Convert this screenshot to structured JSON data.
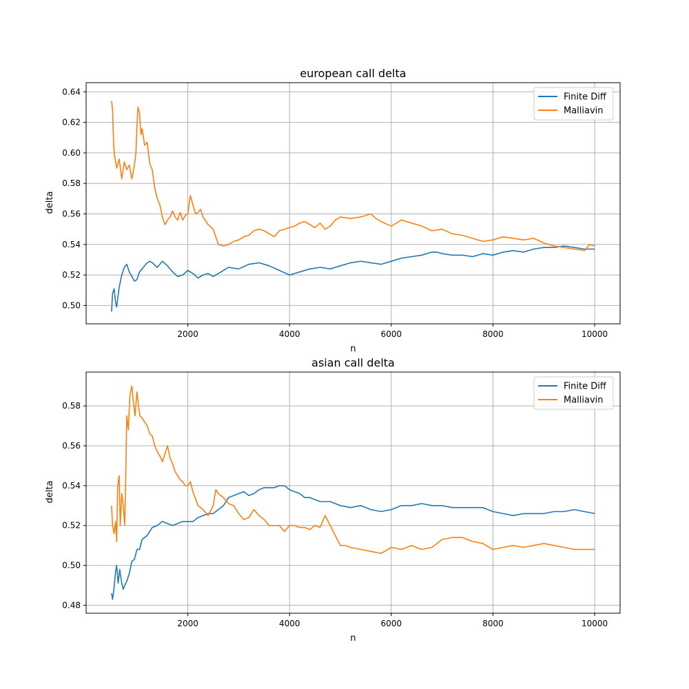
{
  "chart_data": [
    {
      "type": "line",
      "title": "european call delta",
      "xlabel": "n",
      "ylabel": "delta",
      "xlim": [
        0,
        10500
      ],
      "ylim": [
        0.488,
        0.646
      ],
      "xticks": [
        2000,
        4000,
        6000,
        8000,
        10000
      ],
      "yticks": [
        0.5,
        0.52,
        0.54,
        0.56,
        0.58,
        0.6,
        0.62,
        0.64
      ],
      "xtick_labels": [
        "2000",
        "4000",
        "6000",
        "8000",
        "10000"
      ],
      "ytick_labels": [
        "0.50",
        "0.52",
        "0.54",
        "0.56",
        "0.58",
        "0.60",
        "0.62",
        "0.64"
      ],
      "grid": true,
      "legend_position": "top-right",
      "series": [
        {
          "name": "Finite Diff",
          "color": "#1f77b4",
          "x": [
            500,
            520,
            550,
            580,
            600,
            650,
            700,
            750,
            800,
            850,
            900,
            950,
            1000,
            1050,
            1100,
            1150,
            1200,
            1250,
            1300,
            1400,
            1500,
            1600,
            1700,
            1800,
            1900,
            2000,
            2100,
            2200,
            2300,
            2400,
            2500,
            2600,
            2700,
            2800,
            3000,
            3200,
            3400,
            3600,
            3800,
            4000,
            4200,
            4400,
            4600,
            4800,
            5000,
            5200,
            5400,
            5600,
            5800,
            6000,
            6200,
            6400,
            6600,
            6800,
            6900,
            7000,
            7200,
            7400,
            7600,
            7800,
            8000,
            8200,
            8400,
            8600,
            8800,
            9000,
            9200,
            9400,
            9600,
            9800,
            10000
          ],
          "y": [
            0.496,
            0.508,
            0.511,
            0.502,
            0.499,
            0.512,
            0.52,
            0.525,
            0.527,
            0.522,
            0.519,
            0.516,
            0.517,
            0.522,
            0.524,
            0.526,
            0.528,
            0.529,
            0.528,
            0.525,
            0.529,
            0.526,
            0.522,
            0.519,
            0.52,
            0.523,
            0.521,
            0.518,
            0.52,
            0.521,
            0.519,
            0.521,
            0.523,
            0.525,
            0.524,
            0.527,
            0.528,
            0.526,
            0.523,
            0.52,
            0.522,
            0.524,
            0.525,
            0.524,
            0.526,
            0.528,
            0.529,
            0.528,
            0.527,
            0.529,
            0.531,
            0.532,
            0.533,
            0.535,
            0.535,
            0.534,
            0.533,
            0.533,
            0.532,
            0.534,
            0.533,
            0.535,
            0.536,
            0.535,
            0.537,
            0.538,
            0.538,
            0.539,
            0.538,
            0.537,
            0.537
          ]
        },
        {
          "name": "Malliavin",
          "color": "#ff7f0e",
          "x": [
            500,
            520,
            540,
            560,
            600,
            650,
            700,
            750,
            800,
            850,
            900,
            950,
            980,
            1000,
            1020,
            1050,
            1080,
            1100,
            1150,
            1200,
            1250,
            1300,
            1350,
            1400,
            1450,
            1500,
            1550,
            1600,
            1650,
            1700,
            1750,
            1800,
            1850,
            1900,
            1950,
            2000,
            2050,
            2100,
            2150,
            2200,
            2250,
            2300,
            2400,
            2500,
            2600,
            2700,
            2800,
            2900,
            3000,
            3100,
            3200,
            3300,
            3400,
            3500,
            3600,
            3700,
            3800,
            3900,
            4000,
            4100,
            4200,
            4300,
            4400,
            4500,
            4600,
            4700,
            4800,
            4900,
            5000,
            5200,
            5400,
            5600,
            5700,
            5800,
            6000,
            6200,
            6400,
            6600,
            6800,
            7000,
            7200,
            7400,
            7600,
            7800,
            8000,
            8200,
            8400,
            8600,
            8800,
            9000,
            9200,
            9400,
            9600,
            9800,
            9900,
            10000
          ],
          "y": [
            0.634,
            0.628,
            0.606,
            0.598,
            0.59,
            0.596,
            0.583,
            0.594,
            0.589,
            0.592,
            0.583,
            0.592,
            0.6,
            0.618,
            0.63,
            0.626,
            0.612,
            0.616,
            0.605,
            0.607,
            0.593,
            0.589,
            0.577,
            0.57,
            0.566,
            0.558,
            0.553,
            0.556,
            0.558,
            0.562,
            0.558,
            0.556,
            0.561,
            0.556,
            0.559,
            0.56,
            0.572,
            0.566,
            0.56,
            0.561,
            0.563,
            0.558,
            0.553,
            0.55,
            0.54,
            0.539,
            0.54,
            0.542,
            0.543,
            0.545,
            0.546,
            0.549,
            0.55,
            0.549,
            0.547,
            0.545,
            0.549,
            0.55,
            0.551,
            0.552,
            0.554,
            0.555,
            0.553,
            0.551,
            0.554,
            0.55,
            0.552,
            0.556,
            0.558,
            0.557,
            0.558,
            0.56,
            0.557,
            0.555,
            0.552,
            0.556,
            0.554,
            0.552,
            0.549,
            0.55,
            0.547,
            0.546,
            0.544,
            0.542,
            0.543,
            0.545,
            0.544,
            0.543,
            0.544,
            0.541,
            0.539,
            0.538,
            0.537,
            0.536,
            0.54,
            0.539
          ]
        }
      ]
    },
    {
      "type": "line",
      "title": "asian call delta",
      "xlabel": "n",
      "ylabel": "delta",
      "xlim": [
        0,
        10500
      ],
      "ylim": [
        0.476,
        0.597
      ],
      "xticks": [
        2000,
        4000,
        6000,
        8000,
        10000
      ],
      "yticks": [
        0.48,
        0.5,
        0.52,
        0.54,
        0.56,
        0.58
      ],
      "xtick_labels": [
        "2000",
        "4000",
        "6000",
        "8000",
        "10000"
      ],
      "ytick_labels": [
        "0.48",
        "0.50",
        "0.52",
        "0.54",
        "0.56",
        "0.58"
      ],
      "grid": true,
      "legend_position": "top-right",
      "series": [
        {
          "name": "Finite Diff",
          "color": "#1f77b4",
          "x": [
            500,
            520,
            550,
            580,
            600,
            630,
            660,
            700,
            730,
            760,
            800,
            850,
            900,
            950,
            1000,
            1050,
            1100,
            1150,
            1200,
            1300,
            1400,
            1500,
            1600,
            1700,
            1800,
            1900,
            2000,
            2100,
            2200,
            2300,
            2400,
            2500,
            2600,
            2700,
            2800,
            2900,
            3000,
            3100,
            3200,
            3300,
            3400,
            3500,
            3600,
            3700,
            3800,
            3900,
            4000,
            4100,
            4200,
            4300,
            4400,
            4600,
            4800,
            5000,
            5200,
            5400,
            5600,
            5800,
            6000,
            6200,
            6400,
            6600,
            6800,
            7000,
            7200,
            7400,
            7600,
            7800,
            8000,
            8200,
            8400,
            8600,
            8800,
            9000,
            9200,
            9400,
            9600,
            9800,
            10000
          ],
          "y": [
            0.486,
            0.483,
            0.489,
            0.497,
            0.5,
            0.491,
            0.498,
            0.491,
            0.488,
            0.49,
            0.492,
            0.496,
            0.502,
            0.503,
            0.508,
            0.508,
            0.513,
            0.514,
            0.515,
            0.519,
            0.52,
            0.522,
            0.521,
            0.52,
            0.521,
            0.522,
            0.522,
            0.522,
            0.524,
            0.525,
            0.526,
            0.526,
            0.528,
            0.53,
            0.534,
            0.535,
            0.536,
            0.537,
            0.535,
            0.536,
            0.538,
            0.539,
            0.539,
            0.539,
            0.54,
            0.54,
            0.538,
            0.537,
            0.536,
            0.534,
            0.534,
            0.532,
            0.532,
            0.53,
            0.529,
            0.53,
            0.528,
            0.527,
            0.528,
            0.53,
            0.53,
            0.531,
            0.53,
            0.53,
            0.529,
            0.529,
            0.529,
            0.529,
            0.527,
            0.526,
            0.525,
            0.526,
            0.526,
            0.526,
            0.527,
            0.527,
            0.528,
            0.527,
            0.526
          ]
        },
        {
          "name": "Malliavin",
          "color": "#ff7f0e",
          "x": [
            500,
            520,
            550,
            580,
            600,
            620,
            650,
            670,
            700,
            730,
            760,
            780,
            800,
            830,
            860,
            900,
            930,
            960,
            1000,
            1030,
            1060,
            1100,
            1150,
            1200,
            1250,
            1300,
            1350,
            1400,
            1450,
            1500,
            1550,
            1600,
            1650,
            1700,
            1750,
            1800,
            1850,
            1900,
            1950,
            2000,
            2050,
            2100,
            2200,
            2300,
            2400,
            2500,
            2550,
            2600,
            2700,
            2800,
            2900,
            3000,
            3100,
            3200,
            3300,
            3400,
            3500,
            3600,
            3700,
            3800,
            3900,
            4000,
            4100,
            4200,
            4300,
            4400,
            4500,
            4600,
            4650,
            4700,
            4800,
            4900,
            5000,
            5100,
            5200,
            5400,
            5600,
            5800,
            6000,
            6200,
            6400,
            6600,
            6800,
            7000,
            7200,
            7400,
            7600,
            7800,
            8000,
            8200,
            8400,
            8600,
            8800,
            9000,
            9200,
            9400,
            9600,
            9800,
            10000
          ],
          "y": [
            0.53,
            0.52,
            0.516,
            0.522,
            0.512,
            0.54,
            0.545,
            0.52,
            0.536,
            0.53,
            0.52,
            0.547,
            0.575,
            0.568,
            0.585,
            0.59,
            0.582,
            0.575,
            0.587,
            0.58,
            0.575,
            0.574,
            0.572,
            0.57,
            0.566,
            0.565,
            0.56,
            0.557,
            0.555,
            0.552,
            0.556,
            0.56,
            0.554,
            0.551,
            0.547,
            0.545,
            0.543,
            0.542,
            0.54,
            0.54,
            0.542,
            0.537,
            0.53,
            0.528,
            0.525,
            0.53,
            0.538,
            0.536,
            0.534,
            0.531,
            0.53,
            0.526,
            0.523,
            0.524,
            0.528,
            0.525,
            0.523,
            0.52,
            0.52,
            0.52,
            0.517,
            0.52,
            0.52,
            0.519,
            0.519,
            0.518,
            0.52,
            0.519,
            0.522,
            0.525,
            0.52,
            0.515,
            0.51,
            0.51,
            0.509,
            0.508,
            0.507,
            0.506,
            0.509,
            0.508,
            0.51,
            0.508,
            0.509,
            0.513,
            0.514,
            0.514,
            0.512,
            0.511,
            0.508,
            0.509,
            0.51,
            0.509,
            0.51,
            0.511,
            0.51,
            0.509,
            0.508,
            0.508,
            0.508
          ]
        }
      ]
    }
  ]
}
